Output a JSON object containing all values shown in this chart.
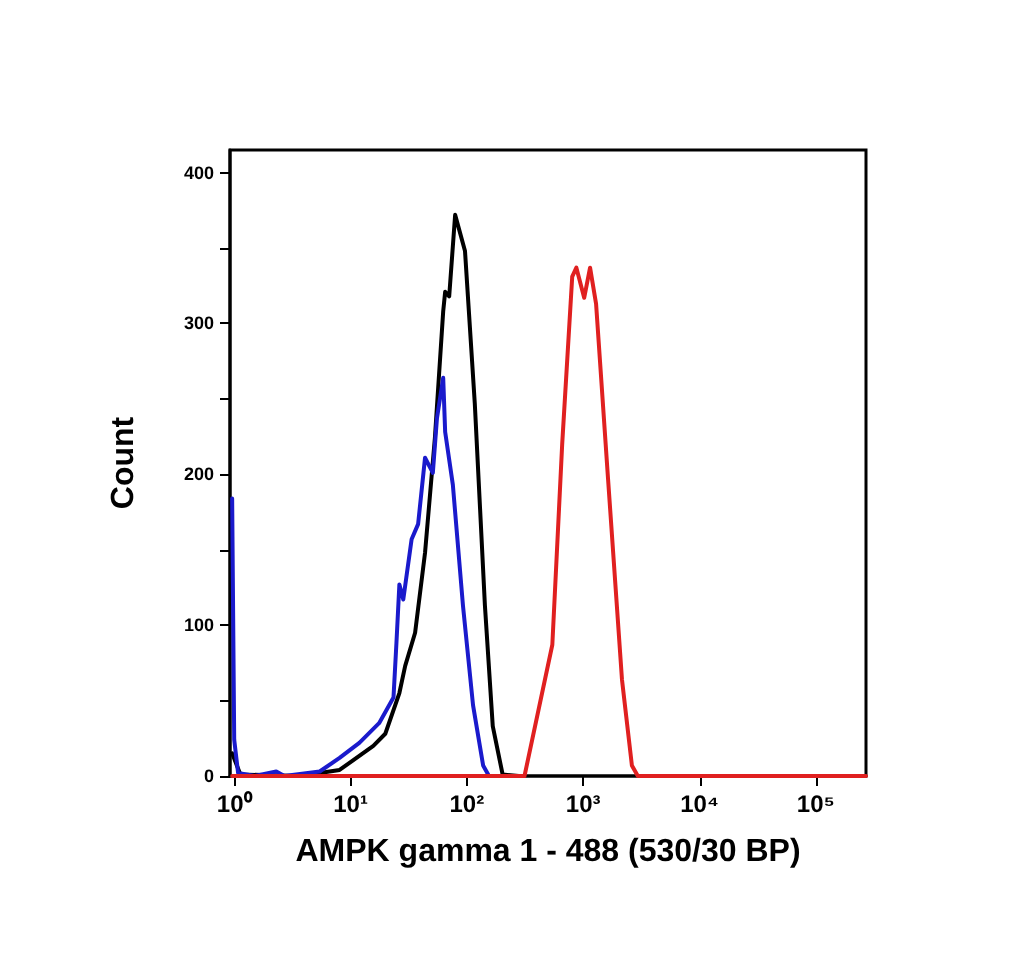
{
  "chart_data": {
    "type": "line",
    "xlabel": "AMPK gamma 1 - 488 (530/30 BP)",
    "ylabel": "Count",
    "log": "x",
    "xlim": [
      0.92,
      270000
    ],
    "xticks": [
      {
        "value": 1,
        "label": "10⁰"
      },
      {
        "value": 10,
        "label": "10¹"
      },
      {
        "value": 100,
        "label": "10²"
      },
      {
        "value": 1000,
        "label": "10³"
      },
      {
        "value": 10000,
        "label": "10⁴"
      },
      {
        "value": 100000,
        "label": "10⁵"
      }
    ],
    "ylim": [
      0,
      415
    ],
    "yticks": [
      0,
      {
        "value": 50,
        "label": null
      },
      100,
      {
        "value": 150,
        "label": null
      },
      200,
      {
        "value": 250,
        "label": null
      },
      300,
      {
        "value": 350,
        "label": null
      },
      400
    ],
    "grid": false,
    "marker": "none",
    "line_style": "solid",
    "series": [
      {
        "color": "#000000",
        "x": [
          0.96,
          1.13,
          3.66,
          8.05,
          15.7,
          19.9,
          26.3,
          29.5,
          35.9,
          43.7,
          53.1,
          62.6,
          65.1,
          70.5,
          79.3,
          96.4,
          117,
          143,
          167,
          203,
          280
        ],
        "values": [
          15,
          1,
          0,
          4,
          20,
          28,
          55,
          73,
          95,
          148,
          224,
          308,
          321,
          318,
          372,
          348,
          247,
          113,
          33,
          1,
          0
        ]
      },
      {
        "color": "#1a1acc",
        "x": [
          0.96,
          1.0,
          1.08,
          1.5,
          2.3,
          2.7,
          5.43,
          8.05,
          11.9,
          17.6,
          23.4,
          24.8,
          26.3,
          28.4,
          33.5,
          38.1,
          43.7,
          51,
          55.3,
          62.6,
          65.1,
          75.8,
          92.6,
          113,
          138,
          155
        ],
        "values": [
          184,
          24,
          2,
          0,
          3,
          0,
          3,
          12,
          22,
          35,
          52,
          88,
          127,
          117,
          157,
          167,
          211,
          201,
          237,
          264,
          228,
          193,
          113,
          47,
          7,
          0
        ]
      },
      {
        "color": "#e02020",
        "x": [
          0.96,
          313,
          543,
          660,
          805,
          874,
          1020,
          1146,
          1291,
          1636,
          2155,
          2623,
          2950,
          270000
        ],
        "values": [
          0,
          0,
          87,
          220,
          331,
          337,
          317,
          337,
          313,
          197,
          64,
          7,
          0,
          0
        ]
      }
    ]
  }
}
